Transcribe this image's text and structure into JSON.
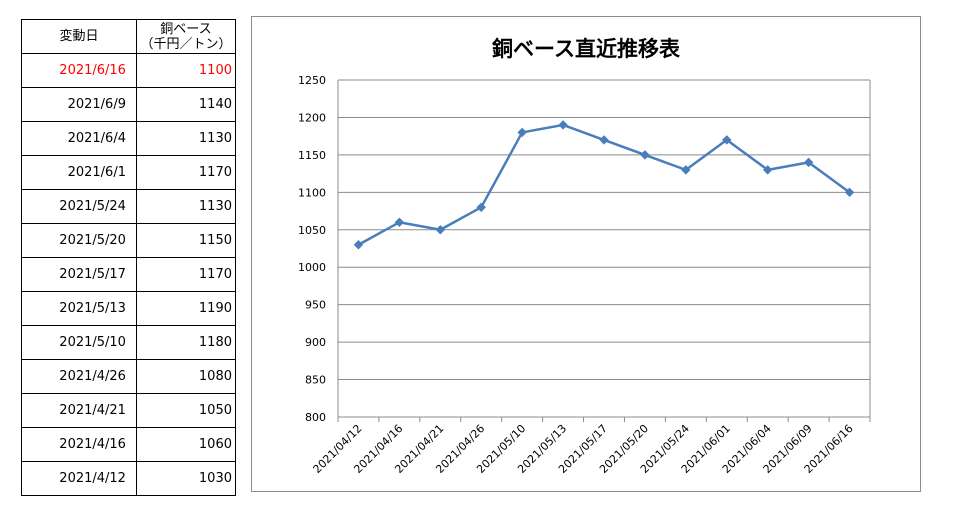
{
  "table": {
    "header": {
      "date": "変動日",
      "value_line1": "銅ベース",
      "value_line2": "（千円／トン）"
    },
    "rows": [
      {
        "date": "2021/6/16",
        "value": "1100"
      },
      {
        "date": "2021/6/9",
        "value": "1140"
      },
      {
        "date": "2021/6/4",
        "value": "1130"
      },
      {
        "date": "2021/6/1",
        "value": "1170"
      },
      {
        "date": "2021/5/24",
        "value": "1130"
      },
      {
        "date": "2021/5/20",
        "value": "1150"
      },
      {
        "date": "2021/5/17",
        "value": "1170"
      },
      {
        "date": "2021/5/13",
        "value": "1190"
      },
      {
        "date": "2021/5/10",
        "value": "1180"
      },
      {
        "date": "2021/4/26",
        "value": "1080"
      },
      {
        "date": "2021/4/21",
        "value": "1050"
      },
      {
        "date": "2021/4/16",
        "value": "1060"
      },
      {
        "date": "2021/4/12",
        "value": "1030"
      }
    ],
    "highlight_color": "#ff0000"
  },
  "chart_data": {
    "type": "line",
    "title": "銅ベース直近推移表",
    "xlabel": "",
    "ylabel": "",
    "categories": [
      "2021/04/12",
      "2021/04/16",
      "2021/04/21",
      "2021/04/26",
      "2021/05/10",
      "2021/05/13",
      "2021/05/17",
      "2021/05/20",
      "2021/05/24",
      "2021/06/01",
      "2021/06/04",
      "2021/06/09",
      "2021/06/16"
    ],
    "series": [
      {
        "values": [
          1030,
          1060,
          1050,
          1080,
          1180,
          1190,
          1170,
          1150,
          1130,
          1170,
          1130,
          1140,
          1100
        ]
      }
    ],
    "ylim": [
      800,
      1250
    ],
    "yticks": [
      "800",
      "850",
      "900",
      "950",
      "1000",
      "1050",
      "1100",
      "1150",
      "1200",
      "1250"
    ],
    "grid": true,
    "line_color": "#4a7ebb"
  }
}
